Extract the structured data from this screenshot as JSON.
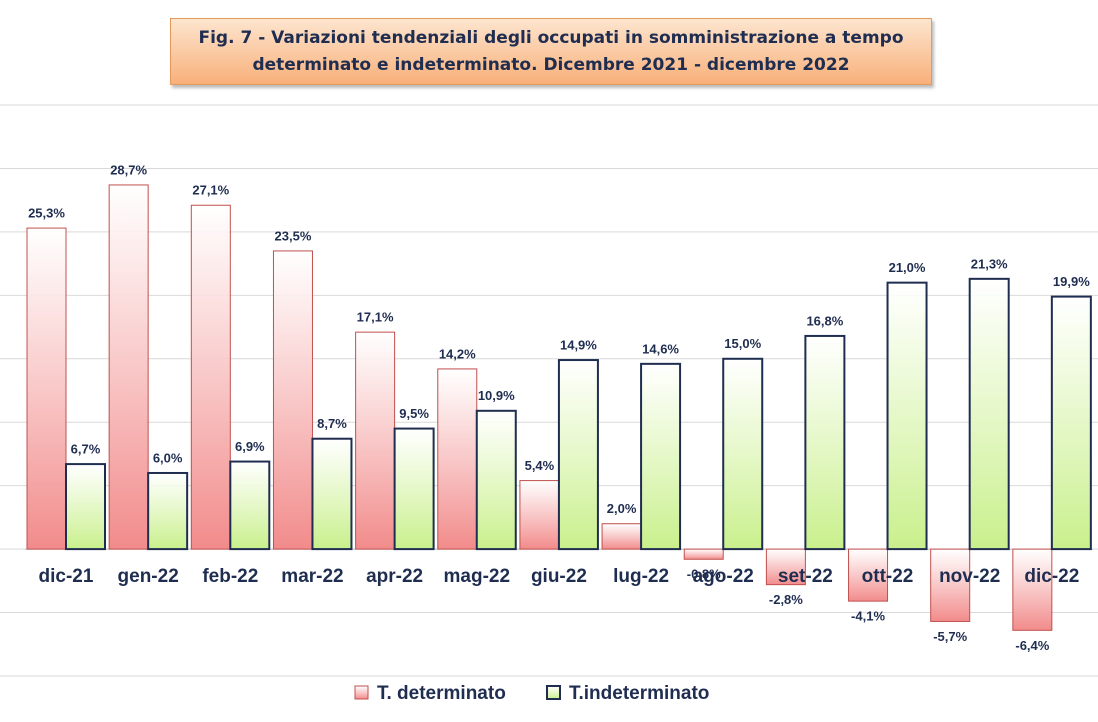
{
  "chart_data": {
    "type": "bar",
    "title": "Fig. 7 - Variazioni tendenziali degli occupati in somministrazione a tempo determinato e indeterminato. Dicembre 2021 - dicembre 2022",
    "categories": [
      "dic-21",
      "gen-22",
      "feb-22",
      "mar-22",
      "apr-22",
      "mag-22",
      "giu-22",
      "lug-22",
      "ago-22",
      "set-22",
      "ott-22",
      "nov-22",
      "dic-22"
    ],
    "series": [
      {
        "name": "T. determinato",
        "color": "#f28b8b",
        "border": "#c0504d",
        "values": [
          25.3,
          28.7,
          27.1,
          23.5,
          17.1,
          14.2,
          5.4,
          2.0,
          -0.8,
          -2.8,
          -4.1,
          -5.7,
          -6.4
        ],
        "value_labels": [
          "25,3%",
          "28,7%",
          "27,1%",
          "23,5%",
          "17,1%",
          "14,2%",
          "5,4%",
          "2,0%",
          "-0,8%",
          "-2,8%",
          "-4,1%",
          "-5,7%",
          "-6,4%"
        ]
      },
      {
        "name": "T.indeterminato",
        "color": "#c9f08c",
        "border": "#1f2d50",
        "values": [
          6.7,
          6.0,
          6.9,
          8.7,
          9.5,
          10.9,
          14.9,
          14.6,
          15.0,
          16.8,
          21.0,
          21.3,
          19.9
        ],
        "value_labels": [
          "6,7%",
          "6,0%",
          "6,9%",
          "8,7%",
          "9,5%",
          "10,9%",
          "14,9%",
          "14,6%",
          "15,0%",
          "16,8%",
          "21,0%",
          "21,3%",
          "19,9%"
        ]
      }
    ],
    "ylim": [
      -10,
      35
    ],
    "yticks": [
      -10,
      -5,
      0,
      5,
      10,
      15,
      20,
      25,
      30,
      35
    ],
    "grid": true,
    "legend": "bottom"
  }
}
